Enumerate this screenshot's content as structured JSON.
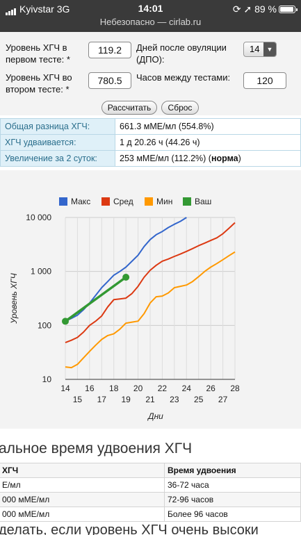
{
  "status_bar": {
    "carrier": "Kyivstar",
    "network": "3G",
    "time": "14:01",
    "battery": "89 %",
    "url": "Небезопасно — cirlab.ru"
  },
  "form": {
    "test1_label_1": "Уровень ХГЧ в",
    "test1_label_2": "первом тесте: *",
    "test1_value": "119.2",
    "days_label_1": "Дней после овуляции",
    "days_label_2": "(ДПО):",
    "days_value": "14",
    "test2_label_1": "Уровень ХГЧ во",
    "test2_label_2": "втором тесте: *",
    "test2_value": "780.5",
    "hours_label": "Часов между тестами:",
    "hours_value": "120",
    "calc_button": "Рассчитать",
    "reset_button": "Сброс"
  },
  "results": {
    "row1_label": "Общая разница ХГЧ:",
    "row1_value": "661.3 мМЕ/мл (554.8%)",
    "row2_label": "ХГЧ удваивается:",
    "row2_value": "1 д 20.26 ч (44.26 ч)",
    "row3_label": "Увеличение за 2 суток:",
    "row3_value": "253 мМЕ/мл (112.2%) (",
    "row3_bold": "норма",
    "row3_tail": ")"
  },
  "chart_data": {
    "type": "line",
    "y_scale": "log",
    "ylabel": "Уровень ХГЧ",
    "xlabel": "Дни",
    "xlim": [
      14,
      28
    ],
    "ylim": [
      10,
      10000
    ],
    "x_ticks_top": [
      "14",
      "16",
      "18",
      "20",
      "22",
      "24",
      "26",
      "28"
    ],
    "x_ticks_bottom": [
      "15",
      "17",
      "19",
      "21",
      "23",
      "25",
      "27"
    ],
    "y_ticks": [
      "10",
      "100",
      "1 000",
      "10 000"
    ],
    "grid": true,
    "legend_position": "top",
    "series": [
      {
        "name": "Макс",
        "color": "#3366cc",
        "x": [
          14,
          14.5,
          15,
          15.5,
          16,
          16.5,
          17,
          17.5,
          18,
          18.5,
          19,
          19.5,
          20,
          20.5,
          21,
          21.5,
          22,
          22.5,
          23,
          23.5,
          24
        ],
        "y": [
          120,
          135,
          155,
          195,
          260,
          360,
          500,
          650,
          850,
          1000,
          1200,
          1550,
          2000,
          2900,
          3900,
          4800,
          5500,
          6500,
          7500,
          8500,
          10000
        ]
      },
      {
        "name": "Сред",
        "color": "#dc3912",
        "x": [
          14,
          14.5,
          15,
          15.5,
          16,
          16.5,
          17,
          17.5,
          18,
          18.5,
          19,
          19.5,
          20,
          20.5,
          21,
          21.5,
          22,
          22.5,
          23,
          23.5,
          24,
          24.5,
          25,
          25.5,
          26,
          26.5,
          27,
          27.5,
          28
        ],
        "y": [
          48,
          53,
          60,
          75,
          100,
          120,
          150,
          220,
          300,
          310,
          320,
          390,
          530,
          780,
          1050,
          1300,
          1550,
          1700,
          1900,
          2100,
          2350,
          2650,
          3000,
          3350,
          3750,
          4200,
          5000,
          6300,
          8000
        ]
      },
      {
        "name": "Мин",
        "color": "#ff9900",
        "x": [
          14,
          14.5,
          15,
          15.5,
          16,
          16.5,
          17,
          17.5,
          18,
          18.5,
          19,
          19.5,
          20,
          20.5,
          21,
          21.5,
          22,
          22.5,
          23,
          23.5,
          24,
          24.5,
          25,
          25.5,
          26,
          26.5,
          27,
          27.5,
          28
        ],
        "y": [
          17,
          16.5,
          19,
          25,
          33,
          43,
          55,
          65,
          70,
          85,
          110,
          115,
          120,
          165,
          260,
          340,
          350,
          400,
          500,
          530,
          560,
          650,
          800,
          1000,
          1200,
          1400,
          1650,
          1950,
          2300
        ]
      },
      {
        "name": "Ваш",
        "color": "#339933",
        "x": [
          14,
          19
        ],
        "y": [
          119.2,
          780.5
        ],
        "markers": true
      }
    ]
  },
  "info": {
    "heading": "альное время удвоения ХГЧ",
    "col1_header": "ХГЧ",
    "col2_header": "Время удвоения",
    "rows": [
      {
        "level": "Е/мл",
        "time": "36-72 часа"
      },
      {
        "level": "000 мМЕ/мл",
        "time": "72-96 часов"
      },
      {
        "level": "000 мМЕ/мл",
        "time": "Более 96 часов"
      }
    ],
    "bottom_heading": "делать, если уровень ХГЧ очень высоки"
  }
}
